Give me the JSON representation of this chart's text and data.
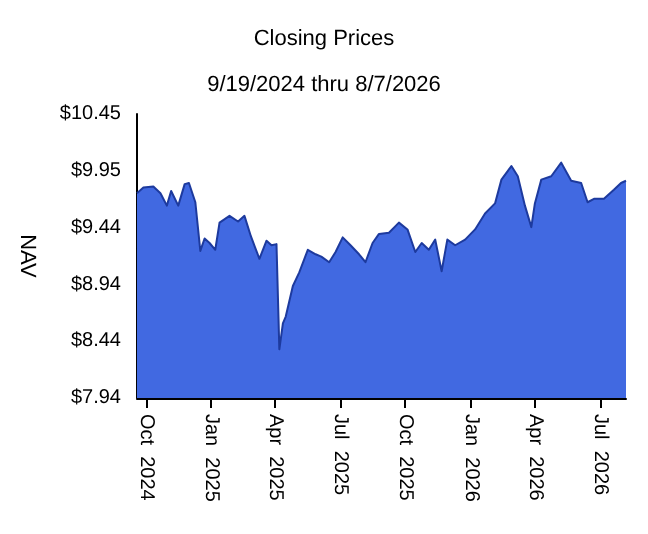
{
  "chart_data": {
    "type": "area",
    "title": "Closing Prices",
    "subtitle": "9/19/2024 thru 8/7/2026",
    "ylabel": "NAV",
    "color": "#4169e1",
    "marker": "none",
    "grid": false,
    "x": [
      "2024-09-19",
      "2024-09-28",
      "2024-10-12",
      "2024-10-22",
      "2024-10-31",
      "2024-11-06",
      "2024-11-16",
      "2024-11-25",
      "2024-12-01",
      "2024-12-10",
      "2024-12-17",
      "2024-12-23",
      "2024-12-30",
      "2025-01-07",
      "2025-01-13",
      "2025-01-27",
      "2025-02-08",
      "2025-02-17",
      "2025-02-26",
      "2025-03-10",
      "2025-03-20",
      "2025-03-27",
      "2025-04-03",
      "2025-04-07",
      "2025-04-12",
      "2025-04-16",
      "2025-04-26",
      "2025-05-05",
      "2025-05-17",
      "2025-05-28",
      "2025-06-05",
      "2025-06-16",
      "2025-06-25",
      "2025-07-05",
      "2025-07-16",
      "2025-07-28",
      "2025-08-06",
      "2025-08-16",
      "2025-08-25",
      "2025-09-08",
      "2025-09-22",
      "2025-10-04",
      "2025-10-15",
      "2025-10-24",
      "2025-11-03",
      "2025-11-12",
      "2025-11-21",
      "2025-11-29",
      "2025-12-10",
      "2025-12-24",
      "2026-01-07",
      "2026-01-21",
      "2026-02-04",
      "2026-02-13",
      "2026-02-27",
      "2026-03-08",
      "2026-03-18",
      "2026-03-27",
      "2026-04-01",
      "2026-04-10",
      "2026-04-24",
      "2026-05-08",
      "2026-05-22",
      "2026-06-05",
      "2026-06-14",
      "2026-06-23",
      "2026-07-07",
      "2026-07-21",
      "2026-07-31",
      "2026-08-07"
    ],
    "values": [
      9.75,
      9.8,
      9.81,
      9.75,
      9.64,
      9.77,
      9.64,
      9.83,
      9.84,
      9.67,
      9.24,
      9.35,
      9.31,
      9.25,
      9.49,
      9.55,
      9.5,
      9.55,
      9.37,
      9.17,
      9.33,
      9.29,
      9.3,
      8.37,
      8.6,
      8.66,
      8.93,
      9.05,
      9.25,
      9.21,
      9.19,
      9.14,
      9.23,
      9.36,
      9.29,
      9.21,
      9.14,
      9.31,
      9.39,
      9.4,
      9.49,
      9.43,
      9.23,
      9.31,
      9.25,
      9.34,
      9.06,
      9.34,
      9.29,
      9.34,
      9.43,
      9.57,
      9.66,
      9.87,
      9.99,
      9.9,
      9.64,
      9.45,
      9.66,
      9.87,
      9.9,
      10.02,
      9.86,
      9.84,
      9.67,
      9.7,
      9.7,
      9.78,
      9.84,
      9.86
    ],
    "xlim": [
      "2024-09-19",
      "2026-08-07"
    ],
    "xticks": [
      {
        "value": "2024-10-01",
        "label": "Oct 2024"
      },
      {
        "value": "2025-01-01",
        "label": "Jan 2025"
      },
      {
        "value": "2025-04-01",
        "label": "Apr 2025"
      },
      {
        "value": "2025-07-01",
        "label": "Jul 2025"
      },
      {
        "value": "2025-10-01",
        "label": "Oct 2025"
      },
      {
        "value": "2026-01-01",
        "label": "Jan 2026"
      },
      {
        "value": "2026-04-01",
        "label": "Apr 2026"
      },
      {
        "value": "2026-07-01",
        "label": "Jul 2026"
      }
    ],
    "ylim": [
      7.94,
      10.45
    ],
    "yticks": [
      {
        "value": 7.94,
        "label": "$7.94"
      },
      {
        "value": 8.44,
        "label": "$8.44"
      },
      {
        "value": 8.94,
        "label": "$8.94"
      },
      {
        "value": 9.44,
        "label": "$9.44"
      },
      {
        "value": 9.95,
        "label": "$9.95"
      },
      {
        "value": 10.45,
        "label": "$10.45"
      }
    ]
  }
}
